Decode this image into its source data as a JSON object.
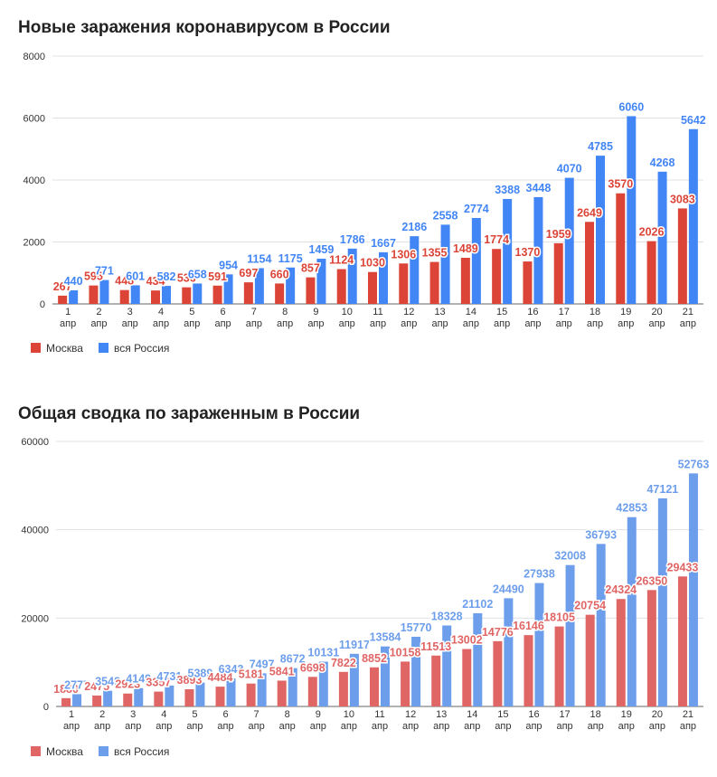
{
  "chart_data": [
    {
      "type": "bar",
      "title": "Новые заражения коронавирусом в России",
      "xlabel": "",
      "ylabel": "",
      "categories": [
        "1 апр",
        "2 апр",
        "3 апр",
        "4 апр",
        "5 апр",
        "6 апр",
        "7 апр",
        "8 апр",
        "9 апр",
        "10 апр",
        "11 апр",
        "12 апр",
        "13 апр",
        "14 апр",
        "15 апр",
        "16 апр",
        "17 апр",
        "18 апр",
        "19 апр",
        "20 апр",
        "21 апр"
      ],
      "series": [
        {
          "name": "Москва",
          "color": "#db4437",
          "values": [
            267,
            595,
            448,
            434,
            536,
            591,
            697,
            660,
            857,
            1124,
            1030,
            1306,
            1355,
            1489,
            1774,
            1370,
            1959,
            2649,
            3570,
            2026,
            3083
          ]
        },
        {
          "name": "вся Россия",
          "color": "#4285f4",
          "values": [
            440,
            771,
            601,
            582,
            658,
            954,
            1154,
            1175,
            1459,
            1786,
            1667,
            2186,
            2558,
            2774,
            3388,
            3448,
            4070,
            4785,
            6060,
            4268,
            5642
          ]
        }
      ],
      "ylim": [
        0,
        8000
      ],
      "yticks": [
        "0",
        "2000",
        "4000",
        "6000",
        "8000"
      ],
      "grid": true,
      "legend": "bottom-left"
    },
    {
      "type": "bar",
      "title": "Общая сводка по зараженным в России",
      "xlabel": "",
      "ylabel": "",
      "categories": [
        "1 апр",
        "2 апр",
        "3 апр",
        "4 апр",
        "5 апр",
        "6 апр",
        "7 апр",
        "8 апр",
        "9 апр",
        "10 апр",
        "11 апр",
        "12 апр",
        "13 апр",
        "14 апр",
        "15 апр",
        "16 апр",
        "17 апр",
        "18 апр",
        "19 апр",
        "20 апр",
        "21 апр"
      ],
      "series": [
        {
          "name": "Москва",
          "color": "#e06666",
          "values": [
            1880,
            2475,
            2923,
            3357,
            3893,
            4484,
            5181,
            5841,
            6698,
            7822,
            8852,
            10158,
            11513,
            13002,
            14776,
            16146,
            18105,
            20754,
            24324,
            26350,
            29433
          ]
        },
        {
          "name": "вся Россия",
          "color": "#6d9eeb",
          "values": [
            2777,
            3548,
            4149,
            4731,
            5389,
            6343,
            7497,
            8672,
            10131,
            11917,
            13584,
            15770,
            18328,
            21102,
            24490,
            27938,
            32008,
            36793,
            42853,
            47121,
            52763
          ]
        }
      ],
      "ylim": [
        0,
        60000
      ],
      "yticks": [
        "0",
        "20000",
        "40000",
        "60000"
      ],
      "grid": true,
      "legend": "bottom-left"
    }
  ]
}
